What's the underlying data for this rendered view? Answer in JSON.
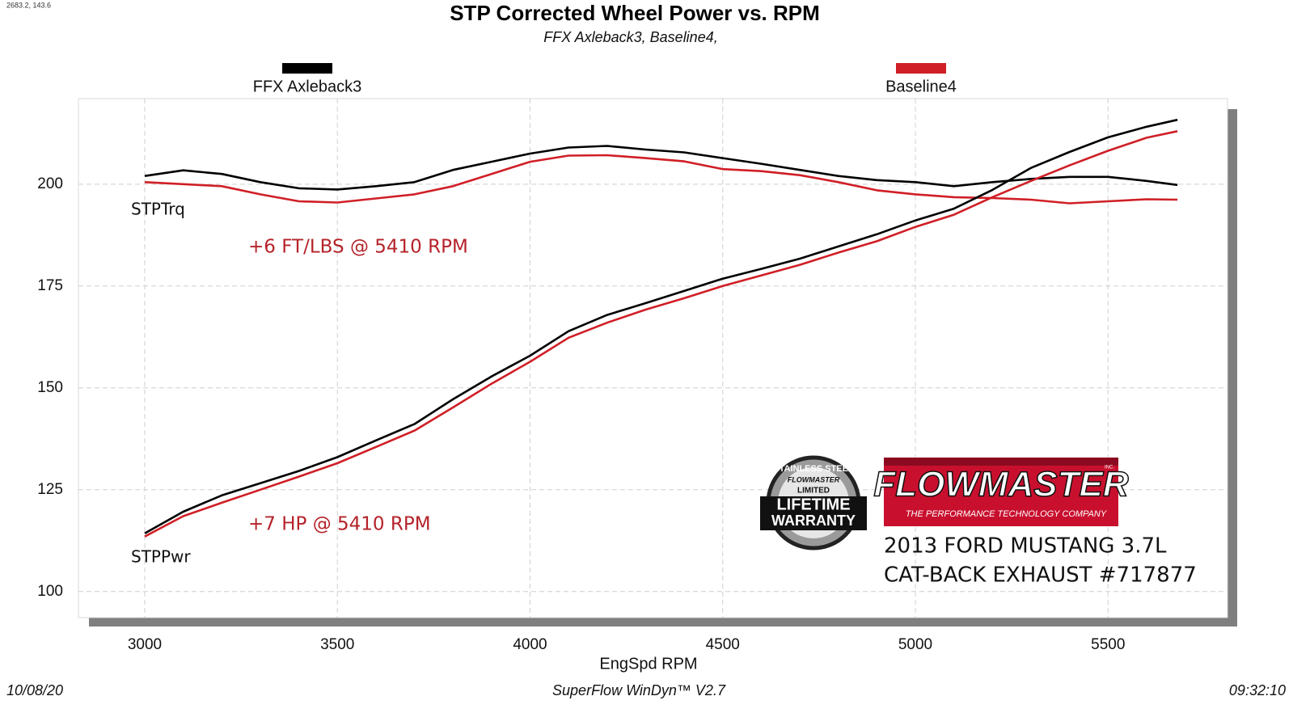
{
  "chart_data": {
    "type": "line",
    "title": "STP Corrected Wheel Power vs. RPM",
    "subtitle": "FFX Axleback3, Baseline4,",
    "corner_readout": "2683.2, 143.6",
    "x_label": "EngSpd  RPM",
    "x": [
      3000,
      3100,
      3200,
      3300,
      3400,
      3500,
      3600,
      3700,
      3800,
      3900,
      4000,
      4100,
      4200,
      4300,
      4400,
      4500,
      4600,
      4700,
      4800,
      4900,
      5000,
      5100,
      5200,
      5300,
      5400,
      5500,
      5600,
      5680
    ],
    "series": [
      {
        "name": "FFX Axleback3",
        "color": "#000000",
        "values": [
          202,
          203.4,
          202.5,
          200.5,
          199,
          198.7,
          199.5,
          200.5,
          203.5,
          205.5,
          207.5,
          209,
          209.4,
          208.5,
          207.8,
          206.4,
          205,
          203.5,
          202,
          201,
          200.5,
          199.5,
          200.5,
          201.3,
          201.8,
          201.8,
          200.8,
          199.8
        ]
      },
      {
        "name": "Baseline4",
        "color": "#d01f26",
        "values": [
          200.5,
          200,
          199.5,
          197.5,
          195.8,
          195.5,
          196.5,
          197.5,
          199.5,
          202.5,
          205.5,
          207,
          207.1,
          206.4,
          205.6,
          203.7,
          203.2,
          202.2,
          200.5,
          198.5,
          197.5,
          196.8,
          196.6,
          196.2,
          195.3,
          195.8,
          196.3,
          196.2
        ]
      },
      {
        "name": "FFX Axleback3",
        "color": "#000000",
        "values": [
          114.3,
          119.6,
          123.6,
          126.6,
          129.6,
          133,
          137.1,
          141.1,
          147.2,
          152.8,
          157.9,
          163.9,
          167.9,
          170.8,
          173.8,
          176.8,
          179.2,
          181.7,
          184.7,
          187.7,
          191.1,
          194,
          198.6,
          204,
          207.9,
          211.5,
          214.1,
          215.8
        ]
      },
      {
        "name": "Baseline4",
        "color": "#d01f26",
        "values": [
          113.5,
          118.5,
          121.8,
          125,
          128.2,
          131.5,
          135.5,
          139.5,
          145.2,
          151,
          156.4,
          162.3,
          166,
          169.2,
          172,
          175,
          177.6,
          180.2,
          183.2,
          186,
          189.5,
          192.5,
          196.8,
          200.8,
          204.6,
          208.2,
          211.4,
          213
        ]
      }
    ],
    "xlim": [
      2828,
      5810
    ],
    "ylim": [
      93.6,
      221
    ],
    "xticks": [
      3000,
      3500,
      4000,
      4500,
      5000,
      5500
    ],
    "yticks": [
      100,
      125,
      150,
      175,
      200
    ],
    "grid": true,
    "annotations": {
      "torque_curve": "STPTrq",
      "power_curve": "STPPwr",
      "torque_gain": "+6 FT/LBS @ 5410 RPM",
      "power_gain": "+7 HP @ 5410 RPM",
      "vehicle": "2013 FORD MUSTANG 3.7L",
      "product": "CAT-BACK EXHAUST #717877"
    },
    "logo": {
      "brand": "FLOWMASTER",
      "inc": "INC.",
      "tagline": "THE PERFORMANCE TECHNOLOGY COMPANY",
      "badge_top": "STAINLESS STEEL",
      "badge_brand": "FLOWMASTER",
      "badge_limited": "LIMITED",
      "badge_lifetime": "LIFETIME",
      "badge_warranty": "WARRANTY"
    },
    "footer": {
      "date": "10/08/20",
      "software": "SuperFlow WinDyn™ V2.7",
      "time": "09:32:10"
    }
  }
}
